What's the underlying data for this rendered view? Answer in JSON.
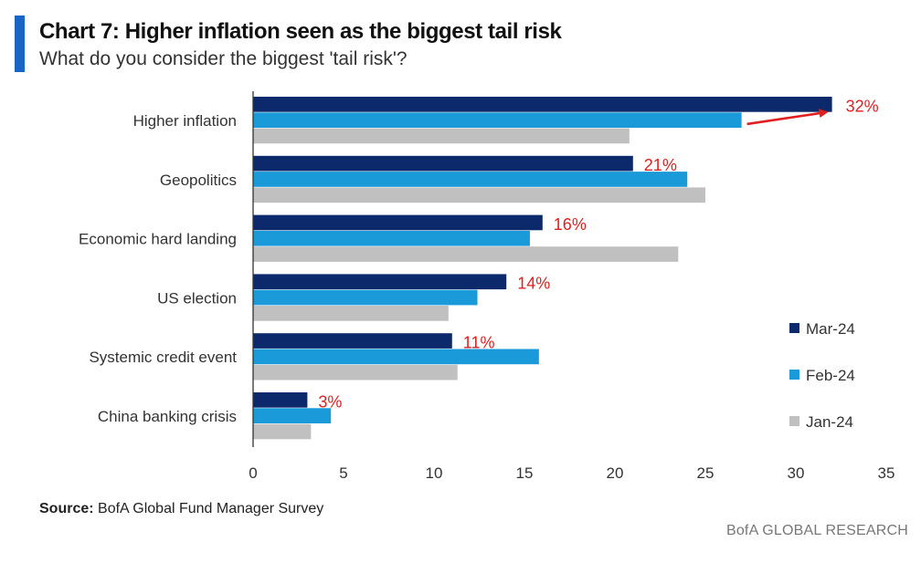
{
  "header": {
    "title": "Chart 7: Higher inflation seen as the biggest tail risk",
    "subtitle": "What do you consider the biggest 'tail risk'?"
  },
  "footer": {
    "source_label": "Source:",
    "source_text": "BofA Global Fund Manager Survey",
    "brand": "BofA GLOBAL RESEARCH"
  },
  "colors": {
    "accent": "#1a63c7",
    "annotation": "#e02020",
    "axis": "#333333"
  },
  "chart_data": {
    "type": "bar",
    "orientation": "horizontal",
    "title": "Chart 7: Higher inflation seen as the biggest tail risk",
    "subtitle": "What do you consider the biggest 'tail risk'?",
    "xlabel": "",
    "ylabel": "",
    "categories": [
      "Higher inflation",
      "Geopolitics",
      "Economic hard landing",
      "US election",
      "Systemic credit event",
      "China banking crisis"
    ],
    "series": [
      {
        "name": "Mar-24",
        "color": "#0c2a6b",
        "values": [
          32,
          21,
          16,
          14,
          11,
          3
        ]
      },
      {
        "name": "Feb-24",
        "color": "#1a9ad9",
        "values": [
          27,
          24,
          15.3,
          12.4,
          15.8,
          4.3
        ]
      },
      {
        "name": "Jan-24",
        "color": "#c0c0c0",
        "values": [
          20.8,
          25,
          23.5,
          10.8,
          11.3,
          3.2
        ]
      }
    ],
    "data_labels": [
      "32%",
      "21%",
      "16%",
      "14%",
      "11%",
      "3%"
    ],
    "xlim": [
      0,
      35
    ],
    "xticks": [
      "0",
      "5",
      "10",
      "15",
      "20",
      "25",
      "30",
      "35"
    ],
    "grid": false,
    "legend_position": "right",
    "annotation": "red arrow from Feb-24 Higher inflation bar toward Mar-24 bar"
  }
}
